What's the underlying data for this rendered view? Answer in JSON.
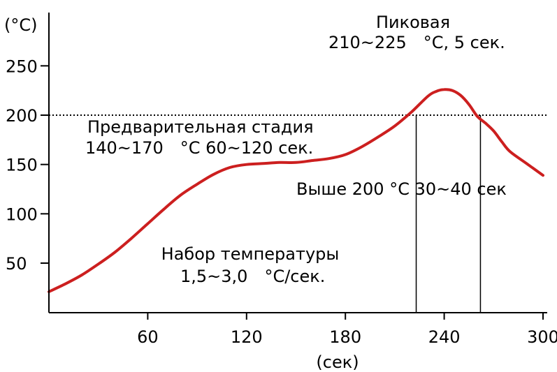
{
  "chart_data": {
    "type": "line",
    "xlabel": "(сек)",
    "ylabel": "(°C)",
    "xlim": [
      0,
      300
    ],
    "ylim": [
      0,
      275
    ],
    "x_ticks": [
      60,
      120,
      180,
      240,
      300
    ],
    "x_tick_labels": [
      "60",
      "120",
      "180",
      "240",
      "300"
    ],
    "y_ticks": [
      50,
      100,
      150,
      200,
      250
    ],
    "y_tick_labels": [
      "50",
      "100",
      "150",
      "200",
      "250"
    ],
    "grid": false,
    "line_color": "#cc1f1f",
    "series": [
      {
        "x": [
          0,
          10,
          20,
          30,
          40,
          50,
          60,
          70,
          80,
          90,
          100,
          110,
          120,
          130,
          140,
          150,
          160,
          170,
          180,
          190,
          200,
          210,
          220,
          230,
          235,
          240,
          245,
          250,
          255,
          260,
          265,
          270,
          275,
          280,
          290,
          300
        ],
        "y": [
          21,
          29,
          38,
          49,
          61,
          75,
          90,
          105,
          119,
          130,
          140,
          147,
          150,
          151,
          152,
          152,
          154,
          156,
          160,
          168,
          178,
          189,
          203,
          219,
          224,
          226,
          225,
          220,
          211,
          199,
          192,
          184,
          173,
          163,
          151,
          139
        ]
      }
    ],
    "reference_lines": [
      {
        "orientation": "horizontal",
        "value": 200,
        "style": "dotted"
      },
      {
        "orientation": "vertical",
        "value": 223,
        "style": "solid"
      },
      {
        "orientation": "vertical",
        "value": 262,
        "style": "solid"
      }
    ],
    "annotations": {
      "peak_title": "Пиковая",
      "peak_detail": "210~225　°C, 5 сек.",
      "preheat_title": "Предварительная стадия",
      "preheat_detail": "140~170　°C  60~120 сек.",
      "above_200": "Выше 200  °C  30~40 сек",
      "ramp_title": "Набор температуры",
      "ramp_detail": "1,5~3,0　°C/сек."
    }
  }
}
